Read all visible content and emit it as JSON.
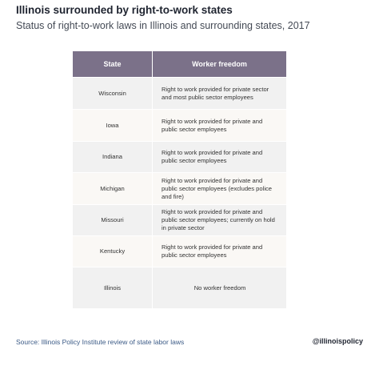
{
  "header": {
    "title": "Illinois surrounded by right-to-work states",
    "subtitle": "Status of right-to-work laws in Illinois and surrounding states, 2017"
  },
  "table": {
    "columns": [
      "State",
      "Worker freedom"
    ],
    "rows": [
      [
        "Wisconsin",
        "Right to work provided for private sector and most public sector employees"
      ],
      [
        "Iowa",
        "Right to work provided for private and public sector employees"
      ],
      [
        "Indiana",
        "Right to work provided for private and public sector employees"
      ],
      [
        "Michigan",
        "Right to work provided for private and public sector employees (excludes police and fire)"
      ],
      [
        "Missouri",
        "Right to work provided for private and public sector employees; currently on hold in private sector"
      ],
      [
        "Kentucky",
        "Right to work provided for private and public sector employees"
      ],
      [
        "Illinois",
        "No worker freedom"
      ]
    ]
  },
  "footer": {
    "source": "Source: Illinois Policy Institute review of state labor laws",
    "handle": "@illinoispolicy"
  }
}
